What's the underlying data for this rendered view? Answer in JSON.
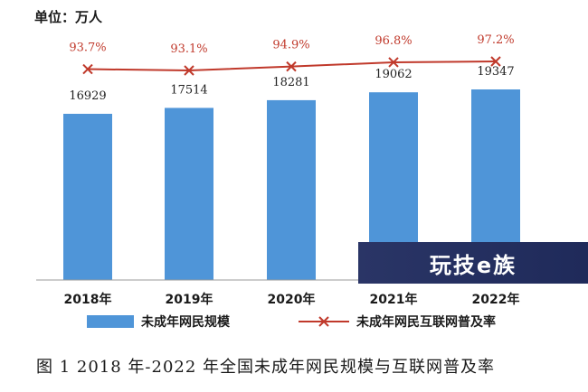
{
  "unit_label": "单位：万人",
  "caption": "图 1 2018 年-2022 年全国未成年网民规模与互联网普及率",
  "watermark_text": "玩技e族",
  "legend": {
    "bar_label": "未成年网民规模",
    "line_label": "未成年网民互联网普及率"
  },
  "colors": {
    "bar": "#4f95d8",
    "line": "#c0392b",
    "axis": "#9a9a9a"
  },
  "chart_data": {
    "type": "bar",
    "categories": [
      "2018年",
      "2019年",
      "2020年",
      "2021年",
      "2022年"
    ],
    "series": [
      {
        "name": "未成年网民规模",
        "type": "bar",
        "values": [
          16929,
          17514,
          18281,
          19062,
          19347
        ],
        "labels": [
          "16929",
          "17514",
          "18281",
          "19062",
          "19347"
        ]
      },
      {
        "name": "未成年网民互联网普及率",
        "type": "line",
        "values": [
          93.7,
          93.1,
          94.9,
          96.8,
          97.2
        ],
        "labels": [
          "93.7%",
          "93.1%",
          "94.9%",
          "96.8%",
          "97.2%"
        ]
      }
    ]
  }
}
